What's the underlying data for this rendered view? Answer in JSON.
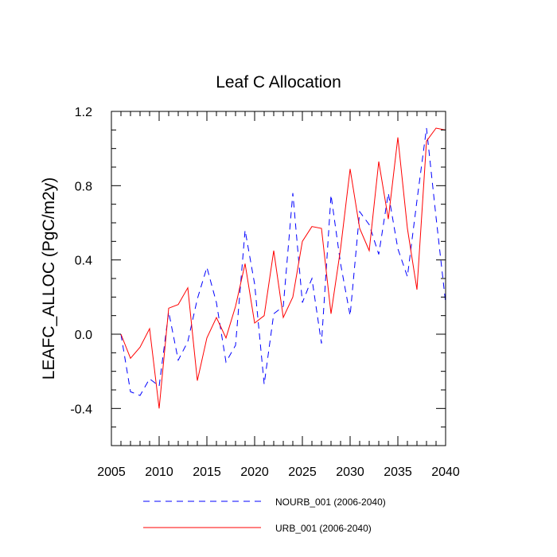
{
  "chart_data": {
    "type": "line",
    "title": "Leaf C Allocation",
    "xlabel": "",
    "ylabel": "LEAFC_ALLOC  (PgC/m2y)",
    "xlim": [
      2005,
      2040
    ],
    "ylim": [
      -0.6,
      1.2
    ],
    "x_tick_labels": [
      "2005",
      "2010",
      "2015",
      "2020",
      "2025",
      "2030",
      "2035",
      "2040"
    ],
    "y_tick_labels": [
      "-0.4",
      "0.0",
      "0.4",
      "0.8",
      "1.2"
    ],
    "grid": false,
    "legend_position": "bottom",
    "x": [
      2006,
      2007,
      2008,
      2009,
      2010,
      2011,
      2012,
      2013,
      2014,
      2015,
      2016,
      2017,
      2018,
      2019,
      2020,
      2021,
      2022,
      2023,
      2024,
      2025,
      2026,
      2027,
      2028,
      2029,
      2030,
      2031,
      2032,
      2033,
      2034,
      2035,
      2036,
      2037,
      2038,
      2039,
      2040
    ],
    "series": [
      {
        "name": "NOURB_001 (2006-2040)",
        "color": "#0000ff",
        "line_style": "dashed",
        "values": [
          0.0,
          -0.31,
          -0.33,
          -0.24,
          -0.28,
          0.12,
          -0.14,
          -0.04,
          0.19,
          0.36,
          0.17,
          -0.15,
          -0.06,
          0.56,
          0.27,
          -0.27,
          0.11,
          0.15,
          0.76,
          0.17,
          0.3,
          -0.05,
          0.75,
          0.38,
          0.1,
          0.66,
          0.59,
          0.43,
          0.76,
          0.46,
          0.31,
          0.72,
          1.11,
          0.63,
          0.17
        ]
      },
      {
        "name": "URB_001 (2006-2040)",
        "color": "#ff0000",
        "line_style": "solid",
        "values": [
          0.0,
          -0.13,
          -0.07,
          0.03,
          -0.4,
          0.14,
          0.16,
          0.25,
          -0.25,
          -0.02,
          0.09,
          -0.02,
          0.15,
          0.38,
          0.06,
          0.1,
          0.45,
          0.09,
          0.2,
          0.5,
          0.58,
          0.57,
          0.11,
          0.46,
          0.89,
          0.57,
          0.45,
          0.93,
          0.62,
          1.06,
          0.57,
          0.24,
          1.04,
          1.11,
          1.1
        ]
      }
    ]
  }
}
